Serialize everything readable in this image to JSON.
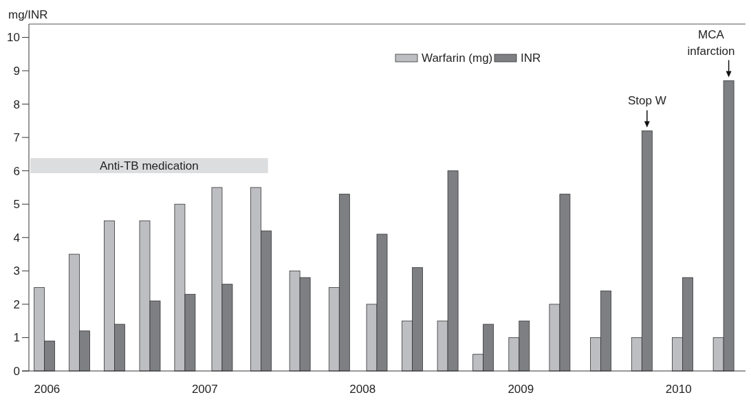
{
  "chart_data": {
    "type": "bar",
    "ylabel": "mg/INR",
    "x": [
      "2005-12-26",
      "2006-03-17",
      "2006-06-06",
      "2006-08-27",
      "2006-11-16",
      "2007-02-10",
      "2007-05-11",
      "2007-08-09",
      "2007-11-08",
      "2008-02-03",
      "2008-04-25",
      "2008-07-16",
      "2008-10-06",
      "2008-12-28",
      "2009-04-01",
      "2009-07-05",
      "2009-10-08",
      "2010-01-10",
      "2010-04-15"
    ],
    "xlim": [
      "2005-11-20",
      "2010-05-23"
    ],
    "xticks": [
      {
        "value": "2006",
        "label": "2006"
      },
      {
        "value": "2007",
        "label": "2007"
      },
      {
        "value": "2008",
        "label": "2008"
      },
      {
        "value": "2009",
        "label": "2009"
      },
      {
        "value": "2010",
        "label": "2010"
      }
    ],
    "ylim": [
      0,
      10.4
    ],
    "yticks": [
      0,
      1,
      2,
      3,
      4,
      5,
      6,
      7,
      8,
      9,
      10
    ],
    "series": [
      {
        "name": "Warfarin (mg)",
        "color": "#bdbec2",
        "values": [
          2.5,
          3.5,
          4.5,
          4.5,
          5,
          5.5,
          5.5,
          3,
          2.5,
          2,
          1.5,
          1.5,
          0.5,
          1,
          2,
          1,
          1,
          1,
          1
        ]
      },
      {
        "name": "INR",
        "color": "#7e7f83",
        "values": [
          0.9,
          1.2,
          1.4,
          2.1,
          2.3,
          2.6,
          4.2,
          2.8,
          5.3,
          4.1,
          3.1,
          6,
          1.4,
          1.5,
          5.3,
          2.4,
          7.2,
          2.8,
          8.7
        ]
      }
    ],
    "bands": [
      {
        "axis": "x",
        "from": "2005-11-20",
        "to": "2007-05-27",
        "label": "Anti-TB medication",
        "color": "#dcdddf"
      }
    ],
    "annotations": [
      {
        "text": "Stop W",
        "x": "2009-10-08",
        "y": 7.2
      },
      {
        "text": "MCA infarction",
        "x": "2010-04-15",
        "y": 8.7
      }
    ],
    "legend": "top",
    "grid": false
  }
}
